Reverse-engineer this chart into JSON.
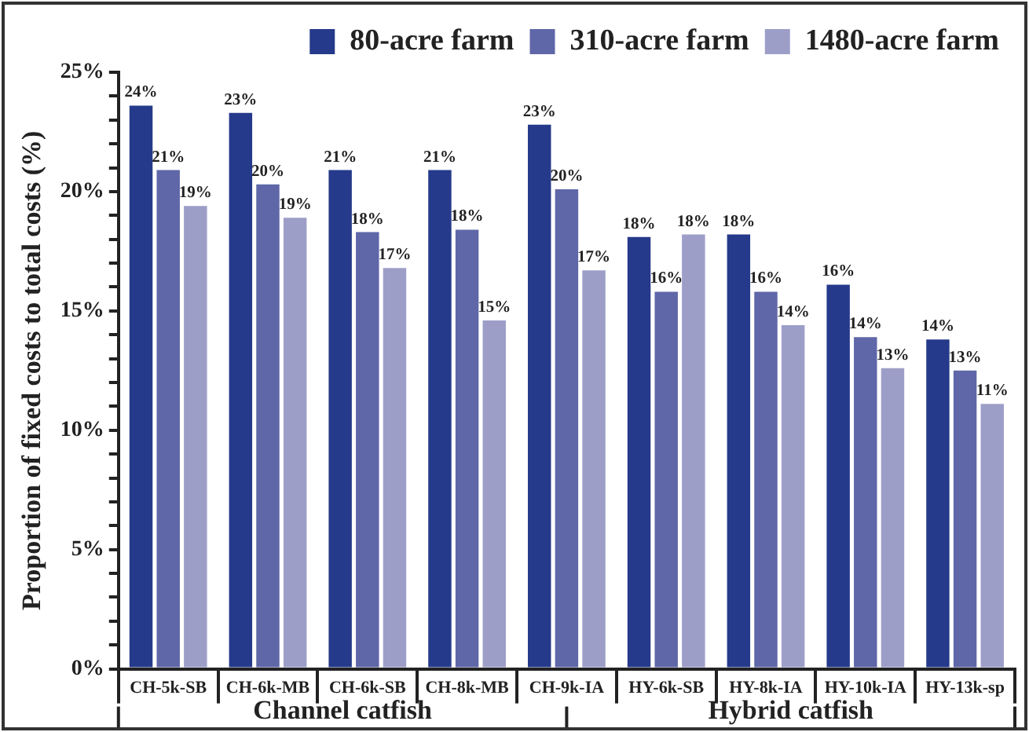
{
  "chart_data": {
    "type": "bar",
    "ylabel": "Proportion of fixed costs to total costs (%)",
    "categories": [
      "CH-5k-SB",
      "CH-6k-MB",
      "CH-6k-SB",
      "CH-8k-MB",
      "CH-9k-IA",
      "HY-6k-SB",
      "HY-8k-IA",
      "HY-10k-IA",
      "HY-13k-sp"
    ],
    "series": [
      {
        "name": "80-acre farm",
        "color": "#253a8a",
        "values": [
          23.6,
          23.3,
          20.9,
          20.9,
          22.8,
          18.1,
          18.2,
          16.1,
          13.8
        ],
        "value_labels": [
          "24%",
          "23%",
          "21%",
          "21%",
          "23%",
          "18%",
          "18%",
          "16%",
          "14%"
        ]
      },
      {
        "name": "310-acre farm",
        "color": "#5f67a8",
        "values": [
          20.9,
          20.3,
          18.3,
          18.4,
          20.1,
          15.8,
          15.8,
          13.9,
          12.5
        ],
        "value_labels": [
          "21%",
          "20%",
          "18%",
          "18%",
          "20%",
          "16%",
          "16%",
          "14%",
          "13%"
        ]
      },
      {
        "name": "1480-acre farm",
        "color": "#9d9ec8",
        "values": [
          19.4,
          18.9,
          16.8,
          14.6,
          16.7,
          18.2,
          14.4,
          12.6,
          11.1
        ],
        "value_labels": [
          "19%",
          "19%",
          "17%",
          "15%",
          "17%",
          "18%",
          "14%",
          "13%",
          "11%"
        ]
      }
    ],
    "ylim": [
      0,
      25
    ],
    "yticks": [
      {
        "value": 0,
        "label": "0%"
      },
      {
        "value": 1,
        "label": null
      },
      {
        "value": 2,
        "label": null
      },
      {
        "value": 3,
        "label": null
      },
      {
        "value": 4,
        "label": null
      },
      {
        "value": 5,
        "label": "5%"
      },
      {
        "value": 6,
        "label": null
      },
      {
        "value": 7,
        "label": null
      },
      {
        "value": 8,
        "label": null
      },
      {
        "value": 9,
        "label": null
      },
      {
        "value": 10,
        "label": "10%"
      },
      {
        "value": 11,
        "label": null
      },
      {
        "value": 12,
        "label": null
      },
      {
        "value": 13,
        "label": null
      },
      {
        "value": 14,
        "label": null
      },
      {
        "value": 15,
        "label": "15%"
      },
      {
        "value": 16,
        "label": null
      },
      {
        "value": 17,
        "label": null
      },
      {
        "value": 18,
        "label": null
      },
      {
        "value": 19,
        "label": null
      },
      {
        "value": 20,
        "label": "20%"
      },
      {
        "value": 21,
        "label": null
      },
      {
        "value": 22,
        "label": null
      },
      {
        "value": 23,
        "label": null
      },
      {
        "value": 24,
        "label": null
      },
      {
        "value": 25,
        "label": "25%"
      }
    ],
    "annotations": [
      "Channel catfish",
      "Hybrid catfish"
    ],
    "grid": false,
    "legend": "top right"
  }
}
